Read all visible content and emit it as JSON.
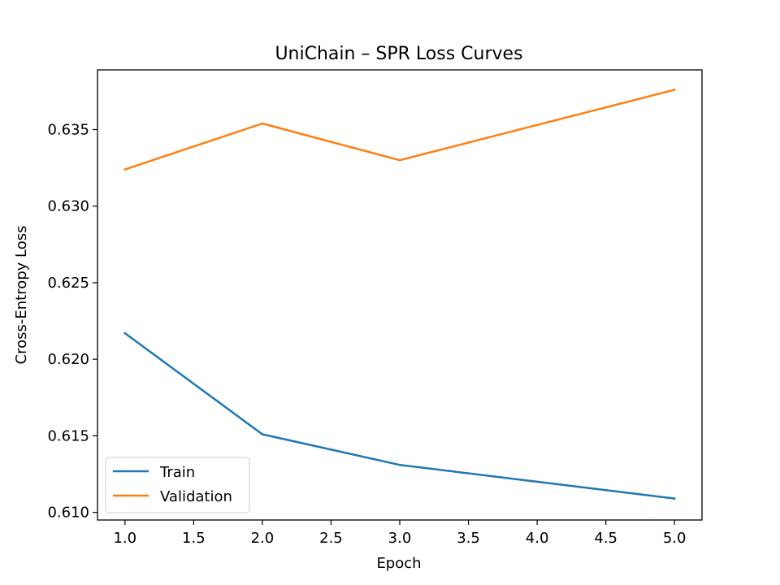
{
  "chart_data": {
    "type": "line",
    "title": "UniChain – SPR Loss Curves",
    "xlabel": "Epoch",
    "ylabel": "Cross-Entropy Loss",
    "x": [
      1.0,
      2.0,
      3.0,
      4.0,
      5.0
    ],
    "xlim": [
      0.8,
      5.2
    ],
    "ylim": [
      0.6095,
      0.6389
    ],
    "xticks": [
      1.0,
      1.5,
      2.0,
      2.5,
      3.0,
      3.5,
      4.0,
      4.5,
      5.0
    ],
    "xtick_labels": [
      "1.0",
      "1.5",
      "2.0",
      "2.5",
      "3.0",
      "3.5",
      "4.0",
      "4.5",
      "5.0"
    ],
    "yticks": [
      0.61,
      0.615,
      0.62,
      0.625,
      0.63,
      0.635
    ],
    "ytick_labels": [
      "0.610",
      "0.615",
      "0.620",
      "0.625",
      "0.630",
      "0.635"
    ],
    "grid": false,
    "legend_position": "lower-left",
    "series": [
      {
        "name": "Train",
        "color": "#1f77b4",
        "values": [
          0.6217,
          0.6151,
          0.6131,
          0.612,
          0.6109
        ]
      },
      {
        "name": "Validation",
        "color": "#ff7f0e",
        "values": [
          0.6324,
          0.6354,
          0.633,
          0.6353,
          0.6376
        ]
      }
    ]
  }
}
